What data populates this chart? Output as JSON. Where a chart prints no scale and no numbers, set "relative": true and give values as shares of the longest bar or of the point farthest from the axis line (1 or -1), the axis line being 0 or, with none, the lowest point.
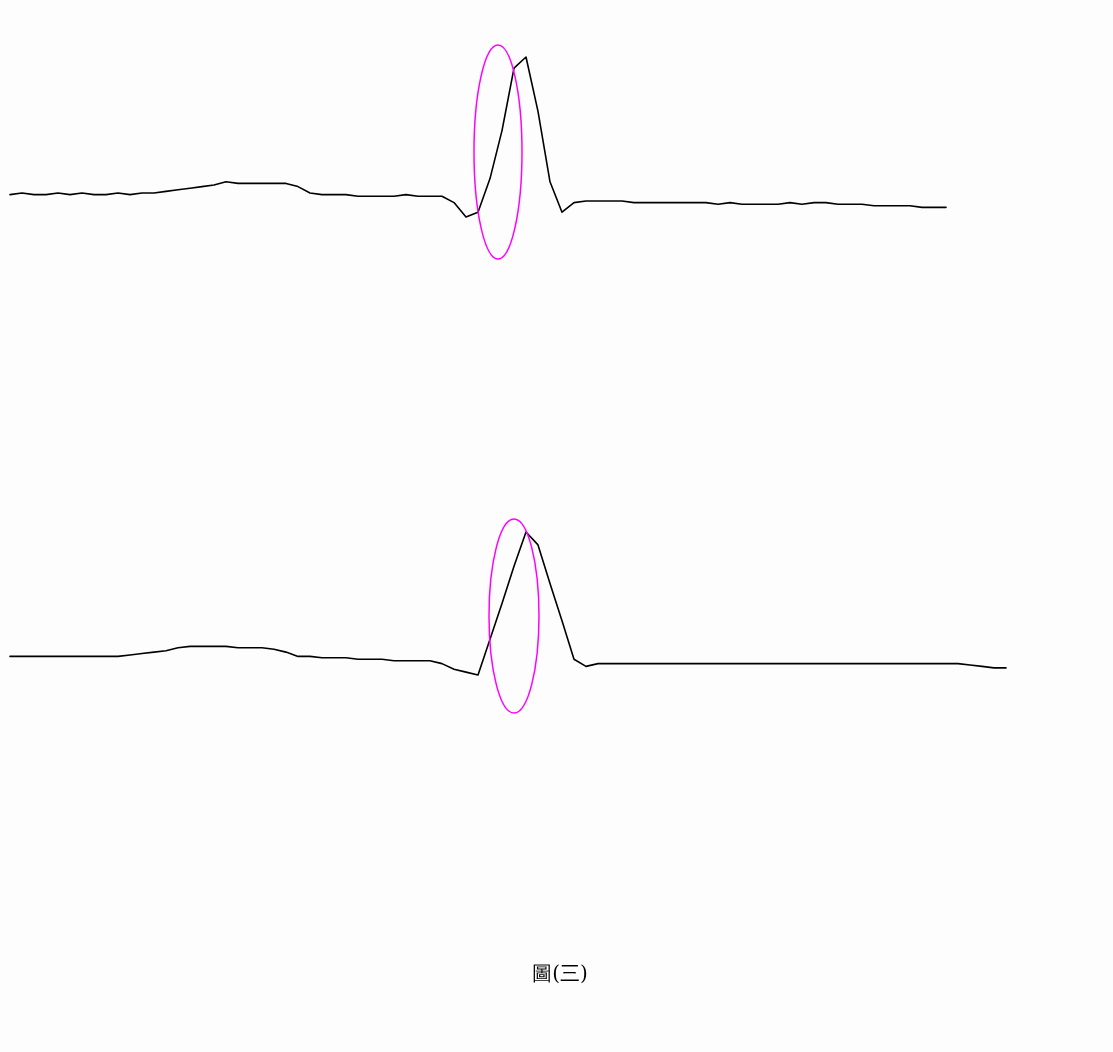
{
  "chart_data": [
    {
      "type": "line",
      "relative": true,
      "categories": [
        null,
        null,
        null,
        null,
        null,
        null,
        null,
        null,
        null,
        null,
        null,
        null,
        null,
        null,
        null,
        null,
        null,
        null,
        null,
        null,
        null,
        null,
        null,
        null,
        null,
        null,
        null,
        null,
        null,
        null,
        null,
        null,
        null,
        null,
        null,
        null,
        null,
        null,
        null,
        null,
        null,
        null,
        null,
        null,
        null,
        null,
        null,
        null,
        null,
        null,
        null,
        null,
        null,
        null,
        null,
        null,
        null,
        null,
        null,
        null,
        null,
        null,
        null,
        null,
        null,
        null,
        null,
        null,
        null,
        null,
        null,
        null,
        null,
        null,
        null,
        null,
        null,
        null,
        null
      ],
      "series": [
        {
          "color": "#000000",
          "values": [
            0.14,
            0.15,
            0.14,
            0.14,
            0.15,
            0.14,
            0.15,
            0.14,
            0.14,
            0.15,
            0.14,
            0.15,
            0.15,
            0.16,
            0.17,
            0.18,
            0.19,
            0.2,
            0.22,
            0.21,
            0.21,
            0.21,
            0.21,
            0.21,
            0.19,
            0.15,
            0.14,
            0.14,
            0.14,
            0.13,
            0.13,
            0.13,
            0.13,
            0.14,
            0.13,
            0.13,
            0.13,
            0.09,
            0,
            0.03,
            0.24,
            0.54,
            0.93,
            1,
            0.66,
            0.22,
            0.03,
            0.09,
            0.1,
            0.1,
            0.1,
            0.1,
            0.09,
            0.09,
            0.09,
            0.09,
            0.09,
            0.09,
            0.09,
            0.08,
            0.09,
            0.08,
            0.08,
            0.08,
            0.08,
            0.09,
            0.08,
            0.09,
            0.09,
            0.08,
            0.08,
            0.08,
            0.07,
            0.07,
            0.07,
            0.07,
            0.06,
            0.06,
            0.06
          ]
        }
      ]
    },
    {
      "type": "line",
      "relative": true,
      "categories": [
        null,
        null,
        null,
        null,
        null,
        null,
        null,
        null,
        null,
        null,
        null,
        null,
        null,
        null,
        null,
        null,
        null,
        null,
        null,
        null,
        null,
        null,
        null,
        null,
        null,
        null,
        null,
        null,
        null,
        null,
        null,
        null,
        null,
        null,
        null,
        null,
        null,
        null,
        null,
        null,
        null,
        null,
        null,
        null,
        null,
        null,
        null,
        null,
        null,
        null,
        null,
        null,
        null,
        null,
        null,
        null,
        null,
        null,
        null,
        null,
        null,
        null,
        null,
        null,
        null,
        null,
        null,
        null,
        null,
        null,
        null,
        null,
        null,
        null,
        null,
        null,
        null,
        null,
        null,
        null,
        null,
        null,
        null,
        null
      ],
      "series": [
        {
          "color": "#000000",
          "values": [
            0.13,
            0.13,
            0.13,
            0.13,
            0.13,
            0.13,
            0.13,
            0.13,
            0.13,
            0.13,
            0.14,
            0.15,
            0.16,
            0.17,
            0.19,
            0.2,
            0.2,
            0.2,
            0.2,
            0.19,
            0.19,
            0.19,
            0.18,
            0.16,
            0.13,
            0.13,
            0.12,
            0.12,
            0.12,
            0.11,
            0.11,
            0.11,
            0.1,
            0.1,
            0.1,
            0.1,
            0.08,
            0.04,
            0.02,
            0,
            0.25,
            0.5,
            0.76,
            1,
            0.91,
            0.64,
            0.38,
            0.11,
            0.06,
            0.08,
            0.08,
            0.08,
            0.08,
            0.08,
            0.08,
            0.08,
            0.08,
            0.08,
            0.08,
            0.08,
            0.08,
            0.08,
            0.08,
            0.08,
            0.08,
            0.08,
            0.08,
            0.08,
            0.08,
            0.08,
            0.08,
            0.08,
            0.08,
            0.08,
            0.08,
            0.08,
            0.08,
            0.08,
            0.08,
            0.08,
            0.07,
            0.06,
            0.05,
            0.05
          ]
        }
      ],
      "annotations": [
        "圖(三)"
      ]
    }
  ]
}
